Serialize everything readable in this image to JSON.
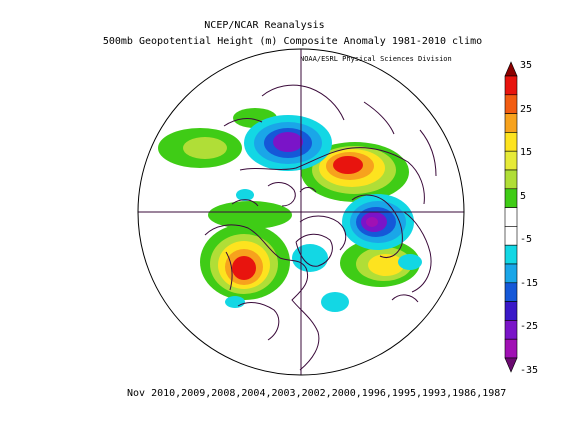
{
  "title_line1": "NCEP/NCAR Reanalysis",
  "title_line2": "500mb Geopotential Height (m) Composite Anomaly 1981-2010 climo",
  "credit": "NOAA/ESRL Physical Sciences Division",
  "caption": "Nov 2010,2009,2008,2004,2003,2002,2000,1996,1995,1993,1986,1987",
  "colorbar": {
    "labels": [
      "35",
      "25",
      "15",
      "5",
      "-5",
      "-15",
      "-25",
      "-35"
    ],
    "colors": [
      "#8b0000",
      "#e8140e",
      "#f25c12",
      "#f7a21d",
      "#fde31f",
      "#e6ea38",
      "#b0de37",
      "#3fcc16",
      "#ffffff",
      "#ffffff",
      "#13d7e4",
      "#1aa6e8",
      "#1558d8",
      "#3a18c8",
      "#7a14c8",
      "#a010b4",
      "#6a0a70"
    ]
  }
}
